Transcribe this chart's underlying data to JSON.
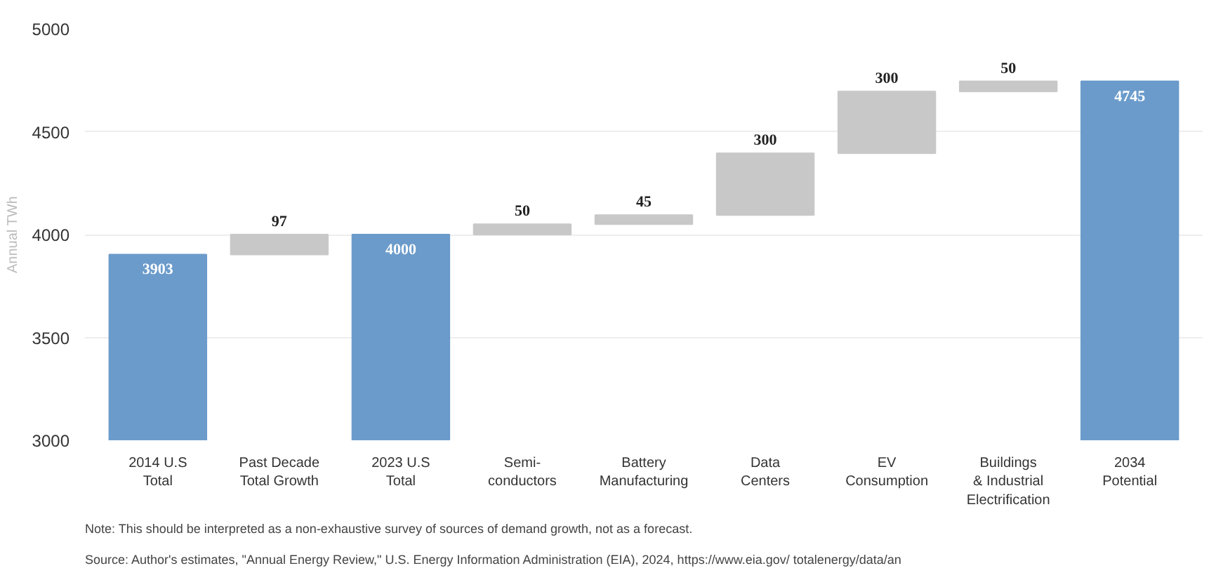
{
  "chart_data": {
    "type": "bar",
    "ylabel": "Annual TWh",
    "categories": [
      "2014 U.S\nTotal",
      "Past Decade\nTotal Growth",
      "2023 U.S\nTotal",
      "Semi-\nconductors",
      "Battery\nManufacturing",
      "Data\nCenters",
      "EV\nConsumption",
      "Buildings\n& Industrial\nElectrification",
      "2034\nPotential"
    ],
    "values": [
      3903,
      97,
      4000,
      50,
      45,
      300,
      300,
      50,
      4745
    ],
    "base": [
      null,
      3903,
      null,
      4000,
      4050,
      4095,
      4395,
      4695,
      null
    ],
    "colors": [
      "#6b9bcb",
      "#c8c8c8",
      "#6b9bcb",
      "#c8c8c8",
      "#c8c8c8",
      "#c8c8c8",
      "#c8c8c8",
      "#c8c8c8",
      "#6b9bcb"
    ],
    "ylim": [
      3000,
      5000
    ],
    "yticks": [
      3000,
      3500,
      4000,
      4500,
      5000
    ],
    "grid": "y",
    "data_labels": true,
    "annotations": [
      "Note: This should be interpreted as a non-exhaustive survey of sources of demand growth, not as a forecast.",
      "Source: Author's estimates,  \"Annual Energy Review,\" U.S. Energy Information Administration (EIA), 2024, https://www.eia.gov/ totalenergy/data/an"
    ]
  }
}
